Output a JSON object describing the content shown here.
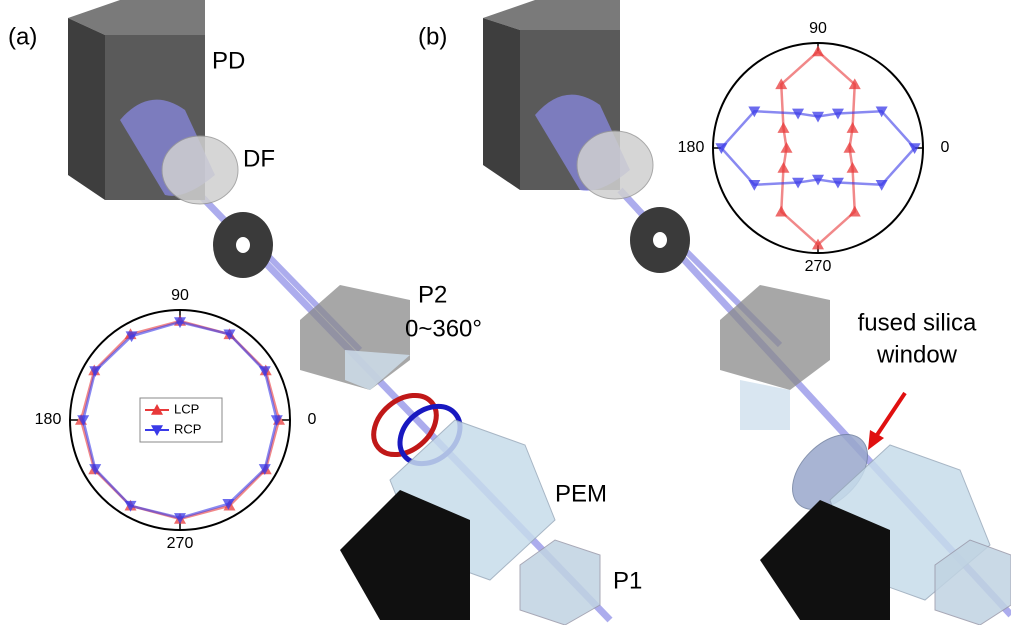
{
  "labels": {
    "panel_a": "(a)",
    "panel_b": "(b)",
    "pd": "PD",
    "df": "DF",
    "p2": "P2",
    "p2_range": "0~360°",
    "pem": "PEM",
    "p1": "P1",
    "window": [
      "fused silica",
      "window"
    ]
  },
  "chart_data": [
    {
      "type": "polar",
      "theta": [
        0,
        30,
        60,
        90,
        120,
        150,
        180,
        210,
        240,
        270,
        300,
        330
      ],
      "rlim": [
        0,
        1
      ],
      "thetaticks": [
        0,
        90,
        180,
        270
      ],
      "legend": "center",
      "series": [
        {
          "name": "LCP",
          "color": "#e8393a",
          "marker": "triangle-up",
          "values": [
            0.9,
            0.9,
            0.9,
            0.9,
            0.9,
            0.9,
            0.9,
            0.9,
            0.9,
            0.9,
            0.9,
            0.9
          ]
        },
        {
          "name": "RCP",
          "color": "#3a3ae8",
          "marker": "triangle-down",
          "values": [
            0.88,
            0.89,
            0.9,
            0.89,
            0.88,
            0.89,
            0.88,
            0.89,
            0.9,
            0.89,
            0.88,
            0.89
          ]
        }
      ]
    },
    {
      "type": "polar",
      "theta": [
        0,
        30,
        60,
        90,
        120,
        150,
        180,
        210,
        240,
        270,
        300,
        330
      ],
      "rlim": [
        0,
        1
      ],
      "thetaticks": [
        0,
        90,
        180,
        270
      ],
      "series": [
        {
          "color": "#e8393a",
          "marker": "triangle-up",
          "values": [
            0.3,
            0.38,
            0.7,
            0.92,
            0.7,
            0.38,
            0.3,
            0.38,
            0.7,
            0.92,
            0.7,
            0.38
          ]
        },
        {
          "color": "#3a3ae8",
          "marker": "triangle-down",
          "values": [
            0.92,
            0.7,
            0.38,
            0.3,
            0.38,
            0.7,
            0.92,
            0.7,
            0.38,
            0.3,
            0.38,
            0.7
          ]
        }
      ]
    }
  ]
}
